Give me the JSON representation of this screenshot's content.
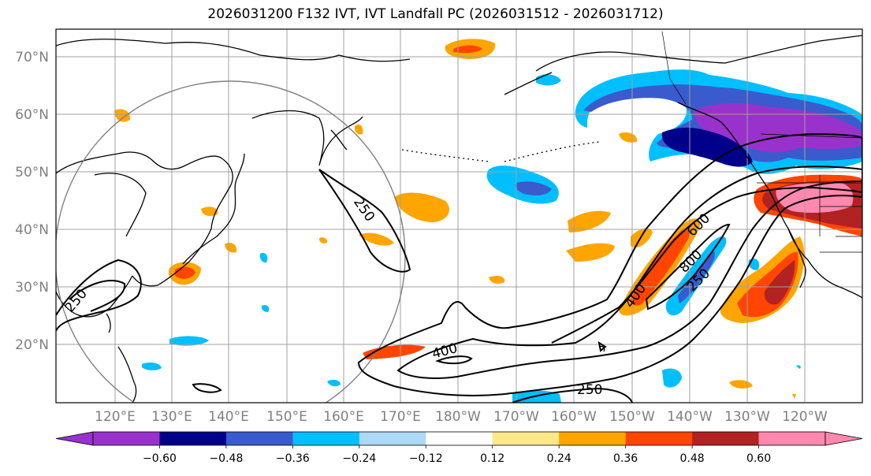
{
  "title": "2026031200 F132 IVT, IVT Landfall PC (2026031512 - 2026031712)",
  "map": {
    "lon_labels": [
      "120°E",
      "130°E",
      "140°E",
      "150°E",
      "160°E",
      "170°E",
      "180°W",
      "170°W",
      "160°W",
      "150°W",
      "140°W",
      "130°W",
      "120°W"
    ],
    "lat_labels": [
      "70°N",
      "60°N",
      "50°N",
      "40°N",
      "30°N",
      "20°N"
    ],
    "contour_labels": [
      "250",
      "400",
      "600",
      "800",
      "250",
      "250",
      "400",
      "250"
    ]
  },
  "colorbar": {
    "colors": [
      "#9932cc",
      "#00008b",
      "#3a5bcd",
      "#00bfff",
      "#add8f6",
      "#ffffff",
      "#ffe78a",
      "#ffa500",
      "#ff4500",
      "#b22222",
      "#ff88b0"
    ],
    "tick_labels": [
      "−0.60",
      "−0.48",
      "−0.36",
      "−0.24",
      "−0.12",
      "0.12",
      "0.24",
      "0.36",
      "0.48",
      "0.60"
    ]
  }
}
